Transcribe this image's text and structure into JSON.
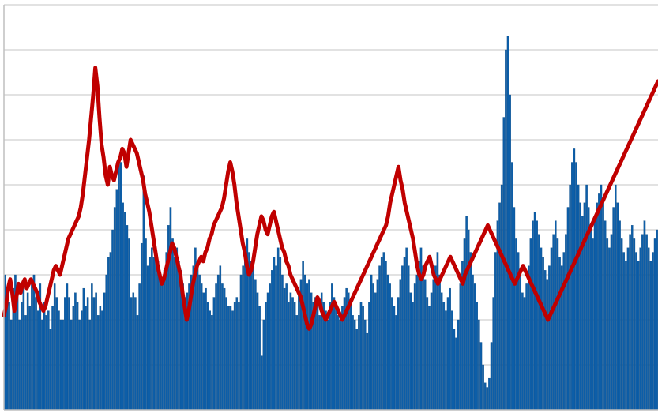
{
  "chart_data": {
    "type": "bar",
    "grid": true,
    "legend": "none",
    "ylim": [
      0,
      9
    ],
    "xlim": [
      0,
      370
    ],
    "bar_color": "#0d5ea8",
    "bar_edge_color": "#08467f",
    "line_color": "#c00000",
    "grid_color": "#d9d9d9",
    "bars": [
      3,
      2.6,
      2.4,
      2.0,
      2.7,
      3.0,
      2.5,
      2.0,
      2.4,
      2.8,
      2.1,
      2.6,
      2.3,
      2.9,
      3.0,
      2.5,
      2.2,
      2.8,
      2.0,
      2.4,
      2.1,
      2.2,
      1.8,
      2.3,
      2.8,
      2.5,
      2.2,
      2.0,
      2.0,
      2.5,
      2.8,
      2.5,
      2.0,
      2.3,
      2.6,
      2.4,
      2.0,
      2.2,
      2.7,
      2.3,
      2.5,
      2.0,
      2.8,
      2.5,
      2.6,
      2.1,
      2.3,
      2.2,
      2.6,
      3.0,
      3.4,
      3.5,
      4.0,
      4.5,
      4.9,
      5.5,
      5.5,
      4.6,
      4.4,
      4.1,
      3.8,
      2.5,
      2.6,
      2.5,
      2.1,
      2.8,
      3.7,
      5.2,
      3.8,
      3.2,
      3.4,
      3.6,
      3.4,
      3.3,
      3.3,
      3.0,
      2.9,
      3.1,
      3.5,
      4.1,
      4.5,
      3.8,
      3.4,
      3.6,
      3.3,
      3.1,
      2.8,
      2.5,
      2.6,
      2.8,
      3.0,
      3.2,
      3.6,
      3.3,
      3.0,
      2.8,
      2.6,
      2.7,
      2.4,
      2.2,
      2.1,
      2.5,
      2.8,
      3.0,
      3.2,
      2.8,
      2.7,
      2.5,
      2.3,
      2.3,
      2.2,
      2.4,
      2.5,
      2.4,
      3.0,
      3.2,
      3.5,
      3.8,
      3.5,
      3.3,
      3.2,
      2.9,
      2.6,
      2.3,
      1.2,
      2.0,
      2.4,
      2.6,
      2.8,
      3.1,
      3.4,
      3.2,
      3.6,
      3.4,
      3.0,
      2.7,
      2.8,
      2.4,
      2.6,
      2.5,
      2.4,
      2.1,
      2.6,
      2.9,
      3.3,
      3.0,
      2.8,
      2.9,
      2.6,
      2.4,
      2.5,
      2.3,
      2.1,
      2.6,
      2.4,
      2.2,
      2.0,
      2.4,
      2.8,
      2.5,
      2.3,
      2.1,
      2.0,
      2.3,
      2.5,
      2.7,
      2.6,
      2.4,
      2.1,
      2.0,
      1.8,
      2.1,
      2.4,
      2.3,
      2.0,
      1.7,
      2.4,
      3.0,
      2.8,
      2.6,
      2.9,
      3.2,
      3.4,
      3.5,
      3.3,
      3.0,
      2.8,
      2.5,
      2.3,
      2.1,
      2.5,
      2.9,
      3.2,
      3.4,
      3.6,
      3.2,
      2.6,
      2.4,
      2.8,
      3.0,
      3.3,
      3.6,
      3.2,
      2.9,
      2.5,
      2.3,
      2.6,
      2.9,
      3.2,
      3.5,
      3.0,
      2.6,
      2.4,
      2.2,
      2.5,
      2.7,
      2.2,
      1.8,
      1.6,
      2.0,
      2.8,
      3.3,
      3.8,
      4.3,
      4.0,
      3.5,
      3.0,
      2.8,
      2.4,
      2.0,
      1.5,
      1.0,
      0.6,
      0.5,
      0.7,
      1.5,
      2.5,
      3.5,
      4.2,
      4.6,
      5.0,
      6.5,
      8.0,
      8.3,
      7.0,
      5.5,
      4.5,
      3.8,
      3.5,
      3.0,
      2.6,
      2.5,
      2.8,
      3.2,
      3.8,
      4.2,
      4.4,
      4.2,
      3.9,
      3.6,
      3.4,
      3.1,
      2.9,
      3.2,
      3.6,
      3.9,
      4.2,
      3.8,
      3.4,
      3.2,
      3.5,
      3.9,
      4.5,
      5.0,
      5.5,
      5.8,
      5.5,
      5.0,
      4.6,
      4.3,
      4.6,
      5.0,
      4.5,
      4.0,
      3.8,
      4.2,
      4.6,
      4.8,
      5.0,
      4.6,
      4.2,
      3.8,
      3.6,
      3.9,
      4.5,
      5.0,
      4.6,
      4.2,
      3.8,
      3.5,
      3.3,
      3.6,
      3.9,
      4.1,
      3.8,
      3.5,
      3.3,
      3.6,
      3.9,
      4.2,
      3.9,
      3.6,
      3.3,
      3.5,
      3.8,
      4.0
    ],
    "line": [
      2.1,
      2.3,
      2.7,
      2.9,
      2.6,
      2.2,
      2.5,
      2.8,
      2.6,
      2.8,
      2.9,
      2.7,
      2.8,
      2.9,
      2.8,
      2.7,
      2.6,
      2.4,
      2.3,
      2.2,
      2.3,
      2.5,
      2.7,
      2.9,
      3.1,
      3.2,
      3.1,
      3.0,
      3.2,
      3.4,
      3.6,
      3.8,
      3.9,
      4.0,
      4.1,
      4.2,
      4.3,
      4.5,
      4.8,
      5.2,
      5.6,
      6.0,
      6.5,
      7.0,
      7.6,
      7.2,
      6.5,
      5.9,
      5.6,
      5.2,
      5.0,
      5.4,
      5.2,
      5.1,
      5.3,
      5.5,
      5.6,
      5.8,
      5.7,
      5.4,
      5.7,
      6.0,
      5.9,
      5.8,
      5.7,
      5.5,
      5.3,
      5.1,
      4.8,
      4.6,
      4.4,
      4.1,
      3.8,
      3.5,
      3.2,
      3.0,
      2.8,
      2.9,
      3.1,
      3.3,
      3.5,
      3.7,
      3.6,
      3.4,
      3.2,
      3.0,
      2.6,
      2.3,
      2.0,
      2.2,
      2.5,
      2.8,
      3.0,
      3.2,
      3.3,
      3.4,
      3.3,
      3.5,
      3.6,
      3.8,
      3.9,
      4.1,
      4.2,
      4.3,
      4.4,
      4.5,
      4.7,
      5.0,
      5.3,
      5.5,
      5.3,
      5.0,
      4.6,
      4.3,
      4.0,
      3.7,
      3.5,
      3.2,
      3.0,
      3.1,
      3.3,
      3.6,
      3.9,
      4.1,
      4.3,
      4.2,
      4.0,
      3.9,
      4.1,
      4.3,
      4.4,
      4.2,
      4.0,
      3.8,
      3.6,
      3.5,
      3.3,
      3.2,
      3.0,
      2.9,
      2.8,
      2.7,
      2.6,
      2.5,
      2.3,
      2.1,
      1.9,
      1.8,
      1.9,
      2.1,
      2.3,
      2.5,
      2.4,
      2.2,
      2.1,
      2.0,
      2.1,
      2.2,
      2.3,
      2.4,
      2.3,
      2.2,
      2.1,
      2.0,
      2.1,
      2.2,
      2.3,
      2.4,
      2.5,
      2.6,
      2.7,
      2.8,
      2.9,
      3.0,
      3.1,
      3.2,
      3.3,
      3.4,
      3.5,
      3.6,
      3.7,
      3.8,
      3.9,
      4.0,
      4.1,
      4.3,
      4.6,
      4.8,
      5.0,
      5.2,
      5.4,
      5.1,
      4.9,
      4.6,
      4.4,
      4.2,
      4.0,
      3.8,
      3.5,
      3.2,
      3.0,
      2.9,
      3.0,
      3.2,
      3.3,
      3.4,
      3.2,
      3.0,
      2.9,
      2.8,
      2.9,
      3.0,
      3.1,
      3.2,
      3.3,
      3.4,
      3.3,
      3.2,
      3.1,
      3.0,
      2.9,
      2.8,
      3.0,
      3.1,
      3.2,
      3.3,
      3.4,
      3.5,
      3.6,
      3.7,
      3.8,
      3.9,
      4.0,
      4.1,
      4.0,
      3.9,
      3.8,
      3.7,
      3.6,
      3.5,
      3.4,
      3.3,
      3.2,
      3.1,
      3.0,
      2.9,
      2.8,
      2.9,
      3.0,
      3.1,
      3.2,
      3.1,
      3.0,
      2.9,
      2.8,
      2.7,
      2.6,
      2.5,
      2.4,
      2.3,
      2.2,
      2.1,
      2.0,
      2.1,
      2.2,
      2.3,
      2.4,
      2.5,
      2.6,
      2.7,
      2.8,
      2.9,
      3.0,
      3.1,
      3.2,
      3.3,
      3.4,
      3.5,
      3.6,
      3.7,
      3.8,
      3.9,
      4.0,
      4.1,
      4.2,
      4.3,
      4.4,
      4.5,
      4.6,
      4.7,
      4.8,
      4.9,
      5.0,
      5.1,
      5.2,
      5.3,
      5.4,
      5.5,
      5.6,
      5.7,
      5.8,
      5.9,
      6.0,
      6.1,
      6.2,
      6.3,
      6.4,
      6.5,
      6.6,
      6.7,
      6.8,
      6.9,
      7.0,
      7.1,
      7.2,
      7.3
    ]
  }
}
